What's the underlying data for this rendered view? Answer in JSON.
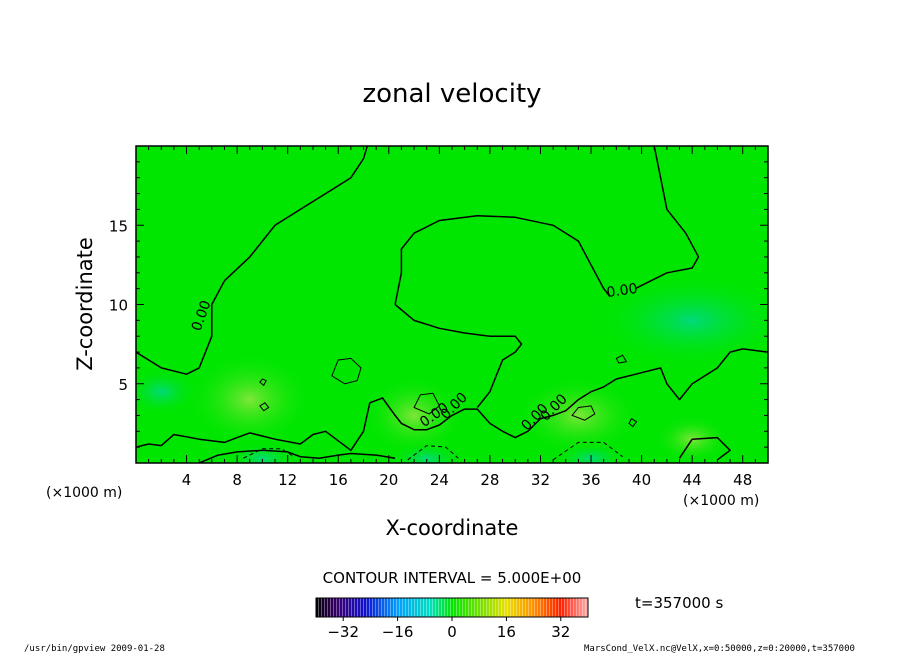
{
  "chart_data": {
    "type": "contour",
    "title": "zonal velocity",
    "xlabel": "X-coordinate",
    "ylabel": "Z-coordinate",
    "x_unit": "(×1000 m)",
    "x_unit_right": "(×1000 m)",
    "x_ticks": [
      4,
      8,
      12,
      16,
      20,
      24,
      28,
      32,
      36,
      40,
      44,
      48
    ],
    "y_ticks": [
      5,
      10,
      15
    ],
    "xlim": [
      0,
      50
    ],
    "ylim": [
      0,
      20
    ],
    "contour_interval_text": "CONTOUR INTERVAL = 5.000E+00",
    "contour_labels": [
      "0.00",
      "0.00",
      "0.00",
      "0.00",
      "0.00",
      "0.00"
    ],
    "time_text": "t=357000 s",
    "colorbar": {
      "min": -40,
      "max": 40,
      "tick_values": [
        -32,
        -16,
        0,
        16,
        32
      ],
      "tick_labels": [
        "−32",
        "−16",
        "0",
        "16",
        "32"
      ]
    },
    "field_color": "#00e600",
    "contour_color": "#000000",
    "contour_lines": [
      {
        "label": "0.00",
        "style": "solid",
        "points": [
          [
            0,
            7
          ],
          [
            2,
            6
          ],
          [
            4,
            5.6
          ],
          [
            5,
            6
          ],
          [
            6,
            8
          ],
          [
            6,
            10
          ],
          [
            7,
            11.5
          ],
          [
            9,
            13
          ],
          [
            11,
            15
          ],
          [
            13,
            16
          ],
          [
            15,
            17
          ],
          [
            17,
            18
          ],
          [
            18,
            19.2
          ],
          [
            18.3,
            20
          ]
        ]
      },
      {
        "label": "0.00",
        "style": "solid",
        "points": [
          [
            20.5,
            10
          ],
          [
            21,
            12
          ],
          [
            21,
            13.5
          ],
          [
            22,
            14.5
          ],
          [
            24,
            15.3
          ],
          [
            27,
            15.6
          ],
          [
            30,
            15.5
          ],
          [
            33,
            15
          ],
          [
            35,
            14
          ],
          [
            36,
            12.5
          ],
          [
            37,
            11
          ],
          [
            37.5,
            10.5
          ]
        ]
      },
      {
        "label": "0.00",
        "style": "solid",
        "points": [
          [
            20.5,
            10
          ],
          [
            22,
            9
          ],
          [
            24,
            8.5
          ],
          [
            26,
            8.2
          ],
          [
            28,
            8
          ],
          [
            30,
            8
          ],
          [
            30.5,
            7.5
          ],
          [
            30,
            7
          ],
          [
            29,
            6.5
          ],
          [
            28.5,
            5.5
          ],
          [
            28,
            4.5
          ],
          [
            27.5,
            4
          ],
          [
            27,
            3.5
          ]
        ]
      },
      {
        "label": "0.00",
        "style": "solid",
        "points": [
          [
            39.5,
            11
          ],
          [
            42,
            12
          ],
          [
            44,
            12.3
          ],
          [
            44.5,
            13
          ],
          [
            43.5,
            14.5
          ],
          [
            42,
            16
          ],
          [
            41.5,
            18
          ],
          [
            41,
            20
          ]
        ]
      },
      {
        "label": "",
        "style": "solid",
        "points": [
          [
            0,
            1
          ],
          [
            1,
            1.2
          ],
          [
            2,
            1.1
          ],
          [
            3,
            1.8
          ],
          [
            5,
            1.5
          ],
          [
            7,
            1.3
          ],
          [
            8,
            1.6
          ],
          [
            9,
            1.9
          ],
          [
            11,
            1.5
          ],
          [
            13,
            1.2
          ],
          [
            14,
            1.8
          ],
          [
            15,
            2
          ],
          [
            16,
            1.4
          ],
          [
            17,
            0.8
          ],
          [
            18,
            2
          ],
          [
            18.5,
            3.8
          ],
          [
            19.5,
            4.1
          ],
          [
            20.5,
            3
          ],
          [
            21,
            2.5
          ],
          [
            22,
            2.1
          ],
          [
            23,
            2.1
          ],
          [
            24,
            2.4
          ],
          [
            25,
            3
          ],
          [
            26,
            3.4
          ],
          [
            27,
            3.4
          ],
          [
            28,
            2.5
          ],
          [
            29,
            2
          ],
          [
            30,
            1.6
          ],
          [
            31,
            2
          ],
          [
            32,
            2.8
          ],
          [
            33,
            3
          ],
          [
            34,
            3.3
          ],
          [
            35,
            4
          ],
          [
            36,
            4.5
          ],
          [
            37,
            4.8
          ],
          [
            38,
            5.3
          ],
          [
            40,
            5.7
          ],
          [
            41.5,
            6
          ],
          [
            42,
            5
          ],
          [
            43,
            4
          ],
          [
            44,
            5
          ],
          [
            46,
            6
          ],
          [
            47,
            7
          ],
          [
            48,
            7.2
          ],
          [
            50,
            7
          ]
        ]
      },
      {
        "label": "",
        "style": "solid",
        "points": [
          [
            5,
            0
          ],
          [
            6.5,
            0.5
          ],
          [
            8,
            0.7
          ],
          [
            10,
            0.8
          ],
          [
            12,
            0.7
          ],
          [
            13,
            0.4
          ],
          [
            14.5,
            0.3
          ],
          [
            16,
            0.5
          ],
          [
            17,
            0.6
          ],
          [
            19,
            0.5
          ],
          [
            20.5,
            0.3
          ]
        ]
      },
      {
        "label": "",
        "style": "dashed",
        "points": [
          [
            8.5,
            0.3
          ],
          [
            10,
            0.9
          ],
          [
            11.5,
            0.9
          ],
          [
            12.5,
            0.4
          ]
        ]
      },
      {
        "label": "",
        "style": "dashed",
        "points": [
          [
            21.5,
            0.2
          ],
          [
            23,
            1.1
          ],
          [
            24.5,
            1
          ],
          [
            25.5,
            0.3
          ]
        ]
      },
      {
        "label": "",
        "style": "dashed",
        "points": [
          [
            33,
            0.2
          ],
          [
            35,
            1.3
          ],
          [
            37,
            1.3
          ],
          [
            38.5,
            0.4
          ]
        ]
      },
      {
        "label": "",
        "style": "solid",
        "points": [
          [
            43,
            0.3
          ],
          [
            44,
            1.5
          ],
          [
            46,
            1.6
          ],
          [
            47,
            0.8
          ],
          [
            46,
            0.2
          ]
        ]
      }
    ],
    "closed_contours": [
      {
        "style": "solid",
        "points": [
          [
            15.5,
            5.5
          ],
          [
            16,
            6.5
          ],
          [
            17,
            6.6
          ],
          [
            17.8,
            6
          ],
          [
            17.5,
            5.2
          ],
          [
            16.5,
            5
          ],
          [
            15.5,
            5.5
          ]
        ]
      },
      {
        "style": "solid",
        "points": [
          [
            22,
            3.5
          ],
          [
            22.5,
            4.3
          ],
          [
            23.5,
            4.4
          ],
          [
            24,
            3.6
          ],
          [
            23.2,
            3.1
          ],
          [
            22,
            3.5
          ]
        ]
      },
      {
        "style": "solid",
        "points": [
          [
            34.5,
            3
          ],
          [
            35,
            3.5
          ],
          [
            36,
            3.6
          ],
          [
            36.3,
            3.1
          ],
          [
            35.5,
            2.7
          ],
          [
            34.5,
            3
          ]
        ]
      },
      {
        "style": "solid",
        "points": [
          [
            9.8,
            5.1
          ],
          [
            10,
            5.3
          ],
          [
            10.3,
            5.2
          ],
          [
            10.1,
            4.9
          ],
          [
            9.8,
            5.1
          ]
        ]
      },
      {
        "style": "solid",
        "points": [
          [
            9.8,
            3.6
          ],
          [
            10.2,
            3.8
          ],
          [
            10.5,
            3.5
          ],
          [
            10.1,
            3.3
          ],
          [
            9.8,
            3.6
          ]
        ]
      },
      {
        "style": "solid",
        "points": [
          [
            38,
            6.6
          ],
          [
            38.5,
            6.8
          ],
          [
            38.8,
            6.4
          ],
          [
            38.2,
            6.3
          ],
          [
            38,
            6.6
          ]
        ]
      },
      {
        "style": "solid",
        "points": [
          [
            39,
            2.5
          ],
          [
            39.2,
            2.8
          ],
          [
            39.6,
            2.6
          ],
          [
            39.3,
            2.3
          ],
          [
            39,
            2.5
          ]
        ]
      }
    ]
  },
  "footer": {
    "left": "/usr/bin/gpview  2009-01-28",
    "right": "MarsCond_VelX.nc@VelX,x=0:50000,z=0:20000,t=357000"
  }
}
